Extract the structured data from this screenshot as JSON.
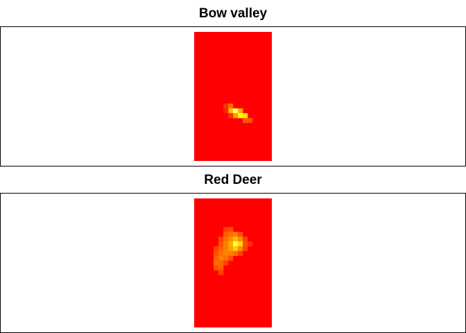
{
  "chart_data": [
    {
      "type": "heatmap",
      "title": "Bow valley",
      "grid": false,
      "colors": {
        "low": "#ff0000",
        "mid": "#ff7f00",
        "high": "#ffff00",
        "peak": "#ffffa0",
        "frame": "#000000"
      },
      "rows": 27,
      "cols": 16,
      "cells": [
        [
          15,
          6,
          0.15
        ],
        [
          15,
          7,
          0.35
        ],
        [
          16,
          7,
          0.6
        ],
        [
          16,
          8,
          0.95
        ],
        [
          16,
          9,
          0.55
        ],
        [
          17,
          8,
          0.5
        ],
        [
          17,
          9,
          0.8
        ],
        [
          17,
          10,
          0.7
        ],
        [
          18,
          10,
          0.3
        ],
        [
          18,
          11,
          0.25
        ],
        [
          16,
          6,
          0.1
        ],
        [
          17,
          7,
          0.15
        ]
      ]
    },
    {
      "type": "heatmap",
      "title": "Red Deer",
      "grid": false,
      "colors": {
        "low": "#ff0000",
        "mid": "#ff7f00",
        "high": "#ffff00",
        "peak": "#ffffa0",
        "frame": "#000000"
      },
      "rows": 27,
      "cols": 16,
      "cells": [
        [
          6,
          6,
          0.2
        ],
        [
          6,
          7,
          0.25
        ],
        [
          7,
          6,
          0.3
        ],
        [
          7,
          7,
          0.35
        ],
        [
          7,
          8,
          0.4
        ],
        [
          7,
          9,
          0.25
        ],
        [
          8,
          5,
          0.2
        ],
        [
          8,
          6,
          0.35
        ],
        [
          8,
          7,
          0.45
        ],
        [
          8,
          8,
          0.6
        ],
        [
          8,
          9,
          0.45
        ],
        [
          8,
          10,
          0.2
        ],
        [
          9,
          5,
          0.25
        ],
        [
          9,
          6,
          0.4
        ],
        [
          9,
          7,
          0.55
        ],
        [
          9,
          8,
          0.9
        ],
        [
          9,
          9,
          0.7
        ],
        [
          9,
          10,
          0.25
        ],
        [
          9,
          11,
          0.15
        ],
        [
          10,
          4,
          0.2
        ],
        [
          10,
          5,
          0.3
        ],
        [
          10,
          6,
          0.4
        ],
        [
          10,
          7,
          0.5
        ],
        [
          10,
          8,
          0.65
        ],
        [
          10,
          9,
          0.45
        ],
        [
          10,
          10,
          0.2
        ],
        [
          11,
          4,
          0.25
        ],
        [
          11,
          5,
          0.35
        ],
        [
          11,
          6,
          0.4
        ],
        [
          11,
          7,
          0.4
        ],
        [
          11,
          8,
          0.35
        ],
        [
          11,
          9,
          0.2
        ],
        [
          12,
          4,
          0.3
        ],
        [
          12,
          5,
          0.4
        ],
        [
          12,
          6,
          0.35
        ],
        [
          12,
          7,
          0.25
        ],
        [
          13,
          4,
          0.35
        ],
        [
          13,
          5,
          0.3
        ],
        [
          13,
          6,
          0.2
        ],
        [
          14,
          4,
          0.25
        ],
        [
          14,
          5,
          0.3
        ],
        [
          15,
          5,
          0.2
        ]
      ]
    }
  ]
}
